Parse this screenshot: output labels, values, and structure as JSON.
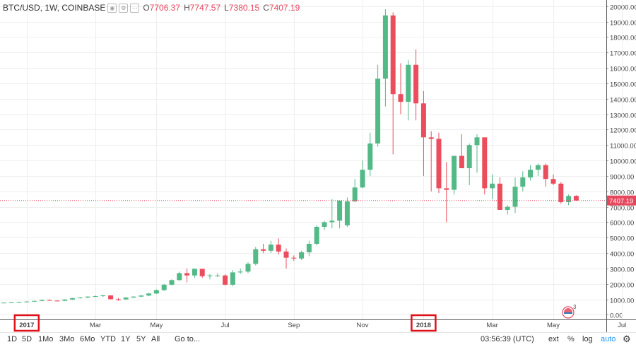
{
  "header": {
    "symbol": "BTC/USD, 1W, COINBASE",
    "open_label": "O",
    "open_value": "7706.37",
    "high_label": "H",
    "high_value": "7747.57",
    "low_label": "L",
    "low_value": "7380.15",
    "close_label": "C",
    "close_value": "7407.19"
  },
  "toolbar": {
    "ranges": [
      "1D",
      "5D",
      "1Mo",
      "3Mo",
      "6Mo",
      "YTD",
      "1Y",
      "5Y",
      "All"
    ],
    "goto_label": "Go to...",
    "time": "03:56:39 (UTC)",
    "ext_label": "ext",
    "pct_label": "%",
    "log_label": "log",
    "auto_label": "auto",
    "settings_icon": "gear-icon"
  },
  "colors": {
    "up": "#53b987",
    "down": "#eb4d5c",
    "highlight_box": "#e0101a",
    "price_tag": "#e5485d"
  },
  "chart_data": {
    "type": "candlestick",
    "title": "BTC/USD, 1W, COINBASE",
    "ylim": [
      -300,
      20400
    ],
    "y_ticks": [
      0,
      1000,
      2000,
      3000,
      4000,
      5000,
      6000,
      7000,
      8000,
      9000,
      10000,
      11000,
      12000,
      13000,
      14000,
      15000,
      16000,
      17000,
      18000,
      19000,
      20000
    ],
    "y_tick_labels": [
      "0.00",
      "1000.00",
      "2000.00",
      "3000.00",
      "4000.00",
      "5000.00",
      "6000.00",
      "7000.00",
      "8000.00",
      "9000.00",
      "10000.00",
      "11000.00",
      "12000.00",
      "13000.00",
      "14000.00",
      "15000.00",
      "16000.00",
      "17000.00",
      "18000.00",
      "19000.00",
      "20000.00"
    ],
    "x_tick_labels": [
      {
        "label": "2017",
        "week": 0,
        "highlighted": true
      },
      {
        "label": "Mar",
        "week": 9,
        "highlighted": false
      },
      {
        "label": "May",
        "week": 17,
        "highlighted": false
      },
      {
        "label": "Jul",
        "week": 26,
        "highlighted": false
      },
      {
        "label": "Sep",
        "week": 35,
        "highlighted": false
      },
      {
        "label": "Nov",
        "week": 44,
        "highlighted": false
      },
      {
        "label": "2018",
        "week": 52,
        "highlighted": true
      },
      {
        "label": "Mar",
        "week": 61,
        "highlighted": false
      },
      {
        "label": "May",
        "week": 69,
        "highlighted": false
      },
      {
        "label": "Jul",
        "week": 78,
        "highlighted": false
      }
    ],
    "last_price": 7407.19,
    "last_price_label": "7407.19",
    "grid": true,
    "candles": [
      [
        780,
        800,
        760,
        790
      ],
      [
        790,
        830,
        770,
        800
      ],
      [
        800,
        850,
        780,
        820
      ],
      [
        820,
        880,
        810,
        860
      ],
      [
        860,
        920,
        840,
        900
      ],
      [
        900,
        1000,
        870,
        960
      ],
      [
        960,
        1000,
        900,
        920
      ],
      [
        920,
        950,
        880,
        910
      ],
      [
        910,
        1000,
        880,
        990
      ],
      [
        990,
        1100,
        960,
        1080
      ],
      [
        1080,
        1150,
        1040,
        1120
      ],
      [
        1120,
        1200,
        1080,
        1180
      ],
      [
        1180,
        1250,
        1130,
        1210
      ],
      [
        1210,
        1290,
        1150,
        1260
      ],
      [
        1260,
        1250,
        1000,
        1010
      ],
      [
        1010,
        1100,
        900,
        1000
      ],
      [
        1000,
        1150,
        960,
        1120
      ],
      [
        1120,
        1200,
        1080,
        1180
      ],
      [
        1180,
        1280,
        1140,
        1250
      ],
      [
        1250,
        1420,
        1200,
        1380
      ],
      [
        1380,
        1640,
        1350,
        1600
      ],
      [
        1600,
        2000,
        1550,
        1950
      ],
      [
        1950,
        2300,
        1900,
        2250
      ],
      [
        2250,
        2800,
        2200,
        2700
      ],
      [
        2700,
        3000,
        2100,
        2550
      ],
      [
        2550,
        3000,
        2400,
        2980
      ],
      [
        2980,
        2950,
        2400,
        2500
      ],
      [
        2500,
        2650,
        2300,
        2550
      ],
      [
        2550,
        2700,
        2450,
        2550
      ],
      [
        2550,
        2620,
        1900,
        1950
      ],
      [
        1950,
        2900,
        1850,
        2750
      ],
      [
        2750,
        3000,
        2650,
        2800
      ],
      [
        2800,
        3400,
        2700,
        3300
      ],
      [
        3300,
        4400,
        3200,
        4250
      ],
      [
        4250,
        4600,
        4000,
        4150
      ],
      [
        4150,
        4800,
        4000,
        4550
      ],
      [
        4550,
        4950,
        3900,
        4100
      ],
      [
        4100,
        4300,
        3000,
        3700
      ],
      [
        3700,
        3850,
        3500,
        3650
      ],
      [
        3650,
        4150,
        3550,
        4050
      ],
      [
        4050,
        4800,
        3800,
        4600
      ],
      [
        4600,
        5800,
        4500,
        5700
      ],
      [
        5700,
        6100,
        5500,
        6000
      ],
      [
        6000,
        7500,
        5600,
        6100
      ],
      [
        6100,
        7200,
        5600,
        7400
      ],
      [
        5800,
        7600,
        5700,
        7350
      ],
      [
        7350,
        8800,
        7300,
        8250
      ],
      [
        8250,
        10000,
        8200,
        9400
      ],
      [
        9400,
        11800,
        9000,
        11100
      ],
      [
        11100,
        16200,
        10900,
        15300
      ],
      [
        15300,
        19800,
        13500,
        19400
      ],
      [
        19400,
        19600,
        10400,
        14300
      ],
      [
        14300,
        16300,
        13000,
        13800
      ],
      [
        13800,
        16500,
        12600,
        16200
      ],
      [
        16200,
        17200,
        12600,
        13700
      ],
      [
        13700,
        14500,
        9000,
        11500
      ],
      [
        11500,
        11900,
        8000,
        11400
      ],
      [
        11400,
        11800,
        7900,
        8200
      ],
      [
        8200,
        9900,
        6000,
        8100
      ],
      [
        8100,
        10100,
        7800,
        10300
      ],
      [
        10300,
        11700,
        9700,
        9500
      ],
      [
        9500,
        11100,
        8400,
        11000
      ],
      [
        11000,
        11700,
        9200,
        11500
      ],
      [
        11500,
        11300,
        7800,
        8200
      ],
      [
        8200,
        9100,
        7500,
        8500
      ],
      [
        8500,
        8900,
        7000,
        6800
      ],
      [
        6800,
        7100,
        6500,
        7000
      ],
      [
        7000,
        8900,
        6600,
        8300
      ],
      [
        8300,
        9300,
        8000,
        8900
      ],
      [
        8900,
        9700,
        8700,
        9400
      ],
      [
        9400,
        9800,
        9000,
        9700
      ],
      [
        9700,
        9800,
        8300,
        8800
      ],
      [
        8800,
        9100,
        8400,
        8500
      ],
      [
        8500,
        8600,
        7200,
        7300
      ],
      [
        7300,
        7800,
        7100,
        7700
      ],
      [
        7706.37,
        7747.57,
        7380.15,
        7407.19
      ]
    ]
  }
}
